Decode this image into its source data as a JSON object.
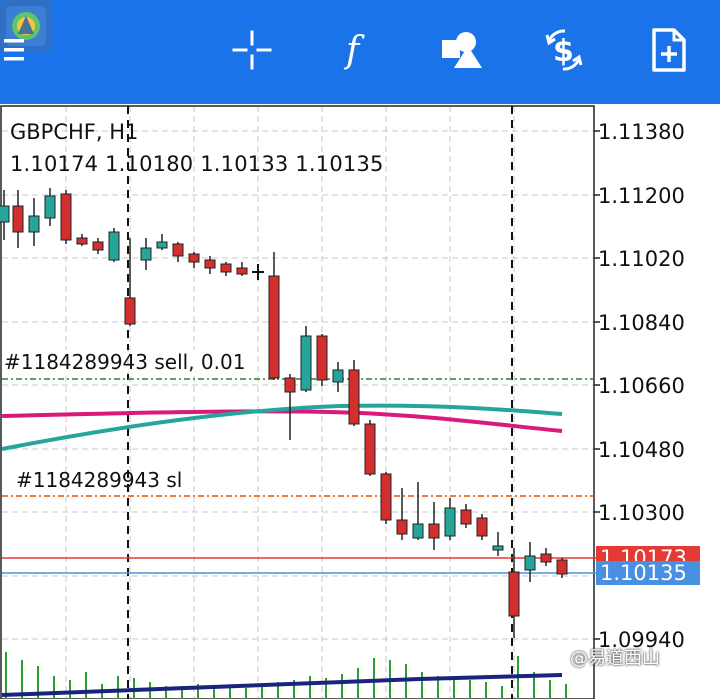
{
  "toolbar": {
    "icons": [
      "menu-icon",
      "app-logo",
      "crosshair-icon",
      "indicators-icon",
      "objects-icon",
      "trade-icon",
      "new-order-icon"
    ]
  },
  "chart": {
    "symbol": "GBPCHF, H1",
    "ohlc": "1.10174 1.10180 1.10133 1.10135",
    "order_label": "#1184289943 sell, 0.01",
    "sl_label": "#1184289943 sl",
    "price_ticks": [
      "1.11380",
      "1.11200",
      "1.11020",
      "1.10840",
      "1.10660",
      "1.10480",
      "1.10300",
      "1.09940"
    ],
    "bid_price": "1.10173",
    "ask_price": "1.10135",
    "colors": {
      "bull": "#26a69a",
      "bear": "#d32f2f",
      "ma_fast": "#d81b7a",
      "ma_slow": "#26a69a",
      "volume": "#2e9e2e",
      "ma_volume": "#1a237e",
      "order_line": "#2e7d32",
      "sl_line": "#e65100"
    }
  },
  "watermark": "@易道西山"
}
